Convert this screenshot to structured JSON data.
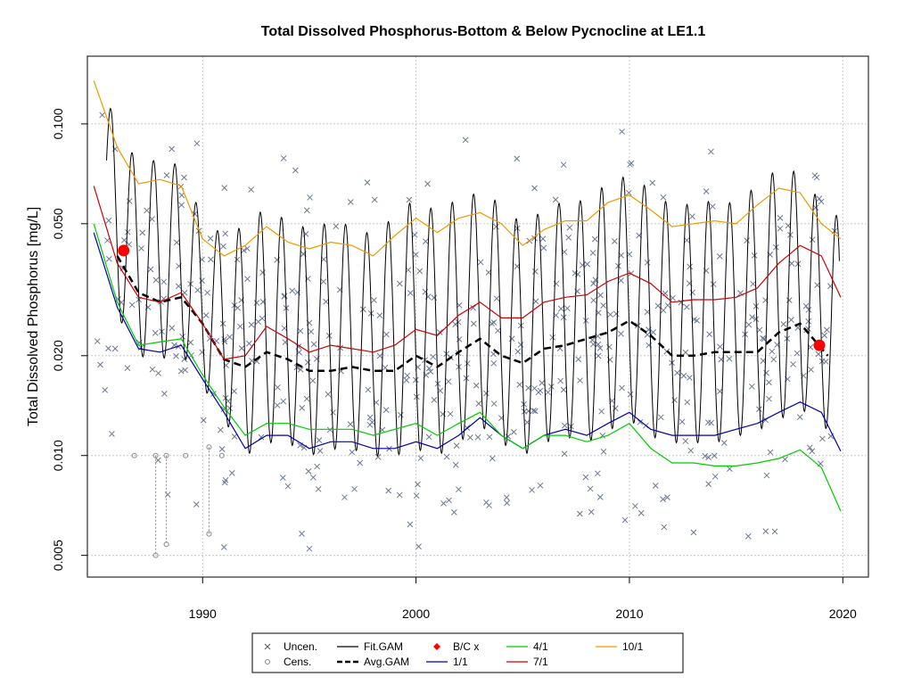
{
  "chart_data": {
    "type": "line",
    "title": "Total Dissolved Phosphorus-Bottom & Below Pycnocline at LE1.1",
    "xlabel": "",
    "ylabel": "Total Dissolved Phosphorus [mg/L]",
    "xlim": [
      1984.6,
      2021.2
    ],
    "ylim": [
      0.0043,
      0.16
    ],
    "y_scale": "log",
    "x_ticks": [
      1990,
      2000,
      2010,
      2020
    ],
    "x_tick_labels": [
      "1990",
      "2000",
      "2010",
      "2020"
    ],
    "y_ticks": [
      0.005,
      0.01,
      0.02,
      0.05,
      0.1
    ],
    "y_tick_labels": [
      "0.005",
      "0.010",
      "0.020",
      "0.050",
      "0.100"
    ],
    "grid": true,
    "legend_position": "bottom",
    "legend": [
      {
        "label": "Uncen.",
        "symbol": "x",
        "color": "#555555"
      },
      {
        "label": "Cens.",
        "symbol": "circle",
        "color": "#888888"
      },
      {
        "label": "Fit.GAM",
        "symbol": "line",
        "color": "#000000"
      },
      {
        "label": "Avg.GAM",
        "symbol": "dashed",
        "color": "#000000"
      },
      {
        "label": "B/C x",
        "symbol": "diamond",
        "color": "#ff0000"
      },
      {
        "label": "1/1",
        "symbol": "line",
        "color": "#0000aa"
      },
      {
        "label": "4/1",
        "symbol": "line",
        "color": "#00cc00"
      },
      {
        "label": "7/1",
        "symbol": "line",
        "color": "#cc0000"
      },
      {
        "label": "10/1",
        "symbol": "line",
        "color": "#ee9900"
      }
    ],
    "series": [
      {
        "name": "Avg.GAM",
        "x": [
          1986,
          1987,
          1988,
          1989,
          1990,
          1991,
          1992,
          1993,
          1994,
          1995,
          1996,
          1997,
          1998,
          1999,
          2000,
          2001,
          2002,
          2003,
          2004,
          2005,
          2006,
          2007,
          2008,
          2009,
          2010,
          2011,
          2012,
          2013,
          2014,
          2015,
          2016,
          2017,
          2018,
          2019.3
        ],
        "y": [
          0.04,
          0.031,
          0.029,
          0.03,
          0.025,
          0.0195,
          0.0185,
          0.0205,
          0.0195,
          0.018,
          0.018,
          0.0185,
          0.018,
          0.018,
          0.02,
          0.0185,
          0.0205,
          0.0225,
          0.02,
          0.019,
          0.021,
          0.0215,
          0.0225,
          0.0235,
          0.0255,
          0.023,
          0.02,
          0.02,
          0.0205,
          0.0205,
          0.0205,
          0.0235,
          0.025,
          0.02
        ]
      },
      {
        "name": "1/1",
        "x": [
          1984.9,
          1986,
          1987,
          1988,
          1989,
          1990,
          1991,
          1992,
          1993,
          1994,
          1995,
          1996,
          1997,
          1998,
          1999,
          2000,
          2001,
          2002,
          2003,
          2004,
          2005,
          2006,
          2007,
          2008,
          2009,
          2010,
          2011,
          2012,
          2013,
          2014,
          2015,
          2016,
          2017,
          2018,
          2019,
          2019.9
        ],
        "y": [
          0.047,
          0.028,
          0.021,
          0.0205,
          0.0215,
          0.017,
          0.0135,
          0.0105,
          0.0115,
          0.0115,
          0.0105,
          0.011,
          0.011,
          0.0105,
          0.0105,
          0.011,
          0.0105,
          0.0115,
          0.013,
          0.0115,
          0.0105,
          0.0115,
          0.012,
          0.0115,
          0.0125,
          0.0135,
          0.012,
          0.0115,
          0.0115,
          0.0115,
          0.012,
          0.0125,
          0.0135,
          0.0145,
          0.0135,
          0.0103
        ]
      },
      {
        "name": "4/1",
        "x": [
          1984.9,
          1986,
          1987,
          1988,
          1989,
          1990,
          1991,
          1992,
          1993,
          1994,
          1995,
          1996,
          1997,
          1998,
          1999,
          2000,
          2001,
          2002,
          2003,
          2004,
          2005,
          2006,
          2007,
          2008,
          2009,
          2010,
          2011,
          2012,
          2013,
          2014,
          2015,
          2016,
          2017,
          2018,
          2019,
          2019.9
        ],
        "y": [
          0.05,
          0.029,
          0.0215,
          0.022,
          0.0225,
          0.0175,
          0.014,
          0.0115,
          0.0125,
          0.0125,
          0.012,
          0.012,
          0.012,
          0.0115,
          0.012,
          0.0125,
          0.0115,
          0.0125,
          0.0135,
          0.0115,
          0.0105,
          0.0115,
          0.0115,
          0.011,
          0.0115,
          0.0125,
          0.0105,
          0.0095,
          0.0095,
          0.0093,
          0.0093,
          0.0095,
          0.0098,
          0.0104,
          0.0092,
          0.0068
        ]
      },
      {
        "name": "7/1",
        "x": [
          1984.9,
          1986,
          1987,
          1988,
          1989,
          1990,
          1991,
          1992,
          1993,
          1994,
          1995,
          1996,
          1997,
          1998,
          1999,
          2000,
          2001,
          2002,
          2003,
          2004,
          2005,
          2006,
          2007,
          2008,
          2009,
          2010,
          2011,
          2012,
          2013,
          2014,
          2015,
          2016,
          2017,
          2018,
          2019,
          2019.9
        ],
        "y": [
          0.065,
          0.038,
          0.03,
          0.029,
          0.031,
          0.025,
          0.0195,
          0.02,
          0.0245,
          0.0225,
          0.0205,
          0.0215,
          0.021,
          0.0205,
          0.0215,
          0.024,
          0.023,
          0.0265,
          0.029,
          0.026,
          0.026,
          0.029,
          0.03,
          0.0305,
          0.0335,
          0.0355,
          0.033,
          0.029,
          0.0295,
          0.0295,
          0.03,
          0.032,
          0.038,
          0.043,
          0.04,
          0.03
        ]
      },
      {
        "name": "10/1",
        "x": [
          1984.9,
          1986,
          1987,
          1988,
          1989,
          1990,
          1991,
          1992,
          1993,
          1994,
          1995,
          1996,
          1997,
          1998,
          1999,
          2000,
          2001,
          2002,
          2003,
          2004,
          2005,
          2006,
          2007,
          2008,
          2009,
          2010,
          2011,
          2012,
          2013,
          2014,
          2015,
          2016,
          2017,
          2018,
          2019,
          2019.9
        ],
        "y": [
          0.135,
          0.085,
          0.066,
          0.068,
          0.065,
          0.045,
          0.04,
          0.043,
          0.049,
          0.044,
          0.042,
          0.044,
          0.043,
          0.04,
          0.046,
          0.052,
          0.047,
          0.052,
          0.054,
          0.05,
          0.043,
          0.048,
          0.051,
          0.051,
          0.058,
          0.061,
          0.055,
          0.049,
          0.05,
          0.051,
          0.05,
          0.057,
          0.064,
          0.062,
          0.05,
          0.045
        ]
      },
      {
        "name": "B/C x",
        "x": [
          1986.3,
          2018.9
        ],
        "y": [
          0.0415,
          0.0215
        ]
      }
    ],
    "censored_points": [
      {
        "x": 1986.8,
        "y": 0.01,
        "lower": 0.01
      },
      {
        "x": 1987.8,
        "y": 0.01,
        "lower": 0.005
      },
      {
        "x": 1988.3,
        "y": 0.01,
        "lower": 0.0054
      },
      {
        "x": 1989.2,
        "y": 0.01,
        "lower": 0.01
      },
      {
        "x": 1990.3,
        "y": 0.0106,
        "lower": 0.0058
      },
      {
        "x": 1990.9,
        "y": 0.01,
        "lower": 0.01
      }
    ]
  }
}
